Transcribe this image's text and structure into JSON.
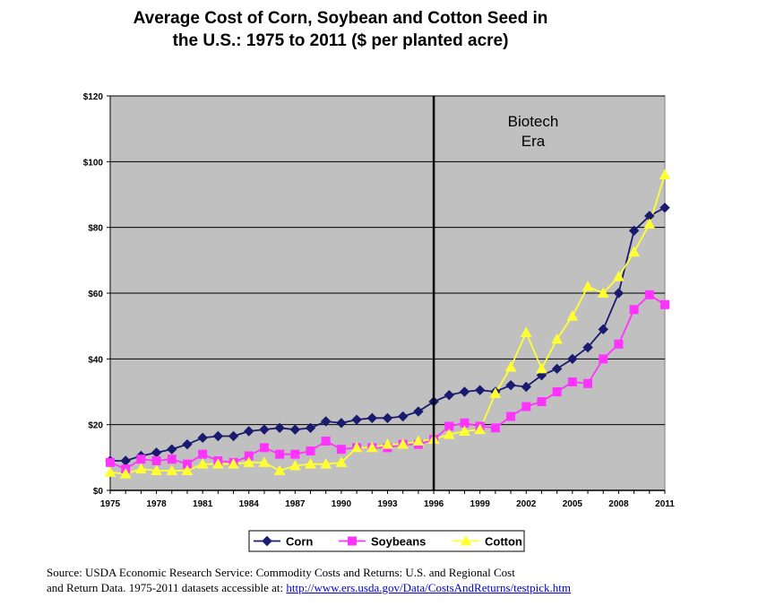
{
  "chart_data": {
    "type": "line",
    "title_line1": "Average Cost of Corn, Soybean and Cotton Seed in",
    "title_line2": "the U.S.: 1975 to 2011 ($ per planted acre)",
    "x": [
      1975,
      1976,
      1977,
      1978,
      1979,
      1980,
      1981,
      1982,
      1983,
      1984,
      1985,
      1986,
      1987,
      1988,
      1989,
      1990,
      1991,
      1992,
      1993,
      1994,
      1995,
      1996,
      1997,
      1998,
      1999,
      2000,
      2001,
      2002,
      2003,
      2004,
      2005,
      2006,
      2007,
      2008,
      2009,
      2010,
      2011
    ],
    "x_ticks": [
      "1975",
      "1978",
      "1981",
      "1984",
      "1987",
      "1990",
      "1993",
      "1996",
      "1999",
      "2002",
      "2005",
      "2008",
      "2011"
    ],
    "y_ticks": [
      "$0",
      "$20",
      "$40",
      "$60",
      "$80",
      "$100",
      "$120"
    ],
    "ylim": [
      0,
      120
    ],
    "xlim": [
      1975,
      2011
    ],
    "grid": "horizontal",
    "background": "#c0c0c0",
    "annotation": {
      "line_at": 1996,
      "label_line1": "Biotech",
      "label_line2": "Era"
    },
    "legend_position": "bottom",
    "series": [
      {
        "name": "Corn",
        "color": "#1a1a6e",
        "marker": "diamond",
        "values": [
          9,
          9,
          10.5,
          11.5,
          12.5,
          14,
          16,
          16.5,
          16.5,
          18,
          18.5,
          19,
          18.5,
          19,
          21,
          20.5,
          21.5,
          22,
          22,
          22.5,
          24,
          27,
          29,
          30,
          30.5,
          30,
          32,
          31.5,
          35,
          37,
          40,
          43.5,
          49,
          60,
          79,
          83.5,
          86
        ]
      },
      {
        "name": "Soybeans",
        "color": "#ff33ff",
        "marker": "square",
        "values": [
          8.5,
          6.5,
          9.5,
          9,
          9.5,
          8,
          11,
          9,
          8.5,
          10.5,
          13,
          11,
          11,
          12,
          15,
          12.5,
          13,
          13,
          13,
          14,
          14,
          15.5,
          19.5,
          20.5,
          19.5,
          19,
          22.5,
          25.5,
          27,
          30,
          33,
          32.5,
          40,
          44.5,
          55,
          59.5,
          56.5
        ]
      },
      {
        "name": "Cotton",
        "color": "#ffff33",
        "marker": "triangle",
        "values": [
          5.5,
          5,
          6.5,
          6,
          6,
          6,
          8,
          8,
          8,
          8.5,
          8.5,
          6,
          7.5,
          8,
          8,
          8.5,
          13,
          13,
          14,
          14,
          15,
          15.5,
          17,
          18,
          18.5,
          29.5,
          37.5,
          48,
          37,
          46,
          53,
          62,
          60,
          65,
          72.5,
          81,
          96
        ]
      }
    ]
  },
  "source": {
    "line1": "Source:  USDA  Economic Research Service:  Commodity Costs and Returns: U.S.  and Regional Cost",
    "line2_text": "and Return Data.  1975-2011 datasets accessible at: ",
    "link": "http://www.ers.usda.gov/Data/CostsAndReturns/testpick.htm"
  }
}
